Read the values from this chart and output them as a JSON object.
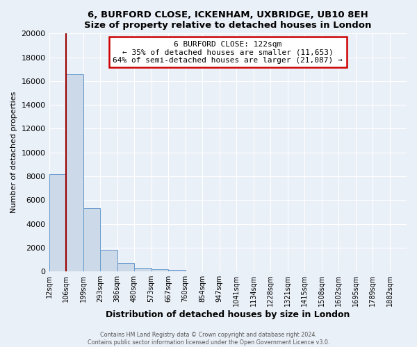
{
  "title": "6, BURFORD CLOSE, ICKENHAM, UXBRIDGE, UB10 8EH",
  "subtitle": "Size of property relative to detached houses in London",
  "xlabel": "Distribution of detached houses by size in London",
  "ylabel": "Number of detached properties",
  "bin_labels": [
    "12sqm",
    "106sqm",
    "199sqm",
    "293sqm",
    "386sqm",
    "480sqm",
    "573sqm",
    "667sqm",
    "760sqm",
    "854sqm",
    "947sqm",
    "1041sqm",
    "1134sqm",
    "1228sqm",
    "1321sqm",
    "1415sqm",
    "1508sqm",
    "1602sqm",
    "1695sqm",
    "1789sqm",
    "1882sqm"
  ],
  "bar_values": [
    8200,
    16600,
    5300,
    1800,
    700,
    300,
    200,
    100,
    0,
    0,
    0,
    0,
    0,
    0,
    0,
    0,
    0,
    0,
    0,
    0,
    0
  ],
  "bar_color": "#ccd9e8",
  "bar_edge_color": "#6699cc",
  "vline_bin": 1,
  "vline_color": "#990000",
  "annotation_title": "6 BURFORD CLOSE: 122sqm",
  "annotation_line1": "← 35% of detached houses are smaller (11,653)",
  "annotation_line2": "64% of semi-detached houses are larger (21,087) →",
  "annotation_box_color": "#ffffff",
  "annotation_box_edge_color": "#cc0000",
  "ylim": [
    0,
    20000
  ],
  "yticks": [
    0,
    2000,
    4000,
    6000,
    8000,
    10000,
    12000,
    14000,
    16000,
    18000,
    20000
  ],
  "footer_line1": "Contains HM Land Registry data © Crown copyright and database right 2024.",
  "footer_line2": "Contains public sector information licensed under the Open Government Licence v3.0.",
  "bg_color": "#eaf0f8",
  "plot_bg_color": "#eaf0f8",
  "grid_color": "#ffffff"
}
